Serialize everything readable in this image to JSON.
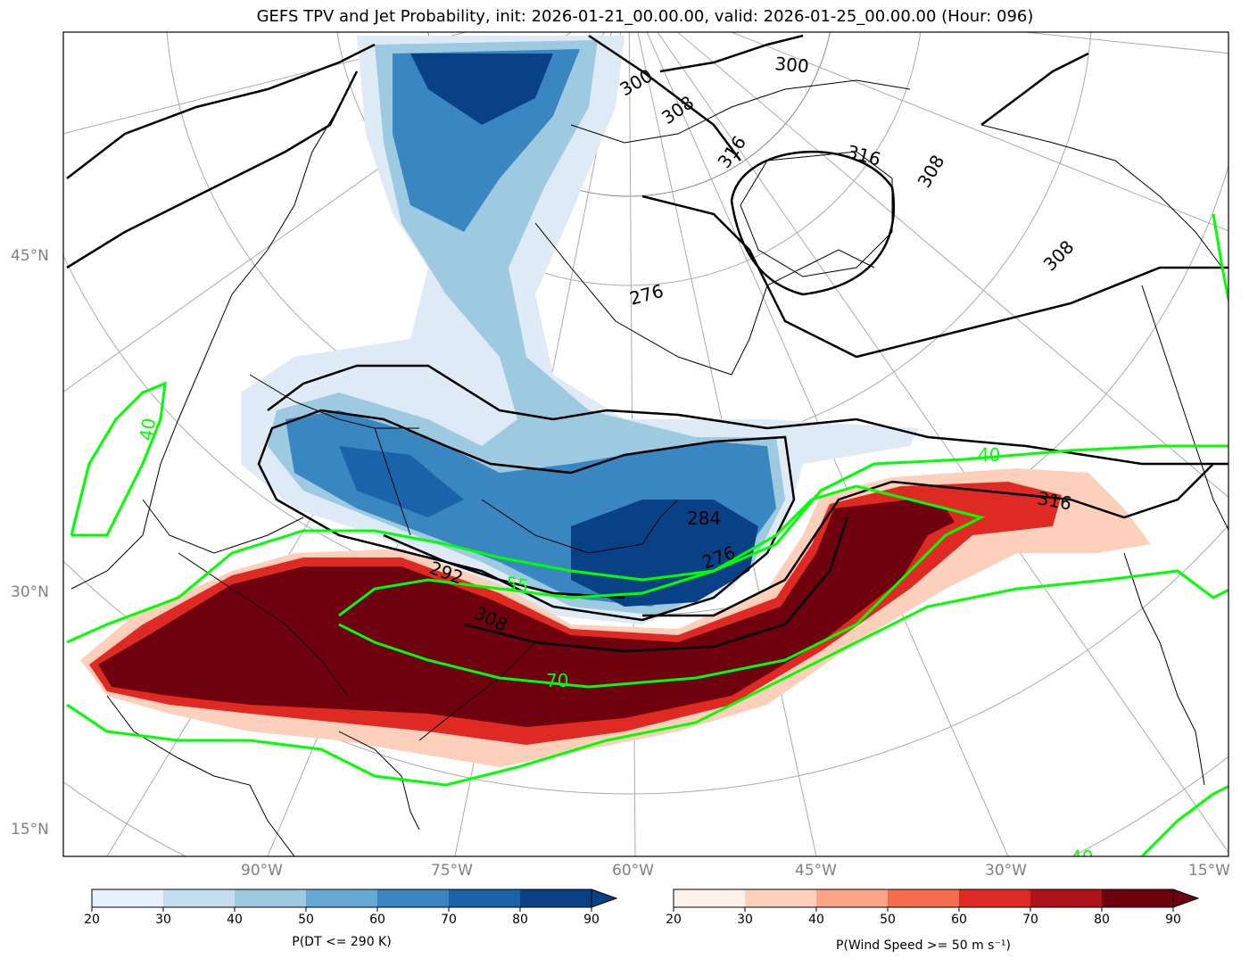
{
  "title": "GEFS TPV and Jet Probability, init: 2026-01-21_00.00.00, valid: 2026-01-25_00.00.00 (Hour: 096)",
  "lat_labels": [
    "45°N",
    "30°N",
    "15°N"
  ],
  "lon_labels": [
    "90°W",
    "75°W",
    "60°W",
    "45°W",
    "30°W",
    "15°W"
  ],
  "theta_contour_labels": [
    "300",
    "300",
    "308",
    "316",
    "276",
    "308",
    "316",
    "308",
    "316",
    "284",
    "276",
    "292",
    "308"
  ],
  "jet_contour_labels": [
    "40",
    "40",
    "55",
    "70",
    "40"
  ],
  "colorbar_left": {
    "label": "P(DT <= 290 K)",
    "ticks": [
      "20",
      "30",
      "40",
      "50",
      "60",
      "70",
      "80",
      "90"
    ],
    "colors": [
      "#e7f0fa",
      "#c6dbef",
      "#9dc9e1",
      "#66a9d4",
      "#3a86c1",
      "#1a63ab",
      "#084186",
      "#084186"
    ]
  },
  "colorbar_right": {
    "label": "P(Wind Speed >= 50 m s⁻¹)",
    "ticks": [
      "20",
      "30",
      "40",
      "50",
      "60",
      "70",
      "80",
      "90"
    ],
    "colors": [
      "#fff1ec",
      "#fdd0bc",
      "#fca486",
      "#f66d4c",
      "#df2a24",
      "#b01319",
      "#6f000e",
      "#6f000e"
    ]
  },
  "colors": {
    "tpv_dark": "#08306b",
    "tpv_mid": "#3a86c1",
    "tpv_light": "#c6dbef",
    "jet_dark": "#6f000e",
    "jet_mid": "#df2a24",
    "jet_light": "#fdd0bc",
    "jet_contour": "#00ff00",
    "theta_contour": "#000000",
    "graticule": "#aaaaaa"
  }
}
